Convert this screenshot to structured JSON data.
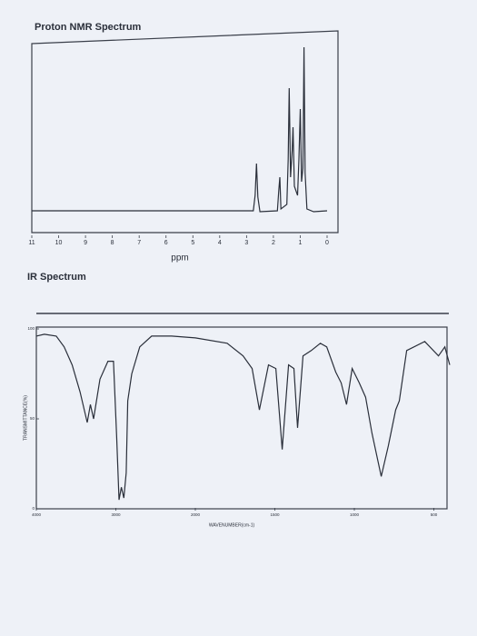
{
  "chart_data": [
    {
      "type": "line",
      "title": "Proton NMR Spectrum",
      "x_label": "ppm",
      "color": "#2a2f3a",
      "xlim": [
        11,
        0
      ],
      "xticks": [
        11,
        10,
        9,
        8,
        7,
        6,
        5,
        4,
        3,
        2,
        1,
        0
      ],
      "ylim": [
        0,
        200
      ],
      "x": [
        11,
        2.75,
        2.68,
        2.63,
        2.58,
        2.5,
        1.85,
        1.8,
        1.76,
        1.72,
        1.5,
        1.45,
        1.41,
        1.36,
        1.3,
        1.27,
        1.22,
        1.1,
        1.05,
        1.0,
        0.95,
        0.9,
        0.86,
        0.82,
        0.75,
        0.5,
        0
      ],
      "values": [
        3,
        3,
        20,
        55,
        18,
        2,
        3,
        25,
        40,
        5,
        10,
        60,
        138,
        40,
        70,
        95,
        30,
        20,
        60,
        115,
        35,
        50,
        183,
        45,
        5,
        2,
        3
      ]
    },
    {
      "type": "line",
      "title": "IR Spectrum",
      "x_label": "WAVENUMBER(cm-1)",
      "y_label": "TRANSMITTANCE(%)",
      "color": "#2a2f3a",
      "xlim": [
        4000,
        400
      ],
      "xticks": [
        4000,
        3000,
        2000,
        1500,
        1000,
        500
      ],
      "ylim": [
        0,
        100
      ],
      "yticks": [
        0,
        50,
        100
      ],
      "x": [
        4000,
        3900,
        3750,
        3650,
        3550,
        3450,
        3360,
        3320,
        3280,
        3200,
        3100,
        3030,
        2990,
        2960,
        2930,
        2900,
        2870,
        2850,
        2800,
        2700,
        2550,
        2300,
        2000,
        1800,
        1700,
        1643,
        1597,
        1540,
        1494,
        1454,
        1414,
        1380,
        1357,
        1323,
        1271,
        1214,
        1174,
        1117,
        1083,
        1049,
        1014,
        969,
        929,
        889,
        831,
        786,
        740,
        717,
        671,
        557,
        471,
        431,
        400
      ],
      "values": [
        96,
        97,
        96,
        90,
        80,
        65,
        48,
        58,
        50,
        72,
        82,
        82,
        40,
        5,
        12,
        6,
        20,
        60,
        75,
        90,
        96,
        96,
        95,
        92,
        85,
        78,
        55,
        80,
        78,
        33,
        80,
        78,
        45,
        85,
        88,
        92,
        90,
        76,
        70,
        58,
        78,
        70,
        62,
        42,
        18,
        35,
        55,
        60,
        88,
        93,
        85,
        90,
        80
      ]
    }
  ]
}
